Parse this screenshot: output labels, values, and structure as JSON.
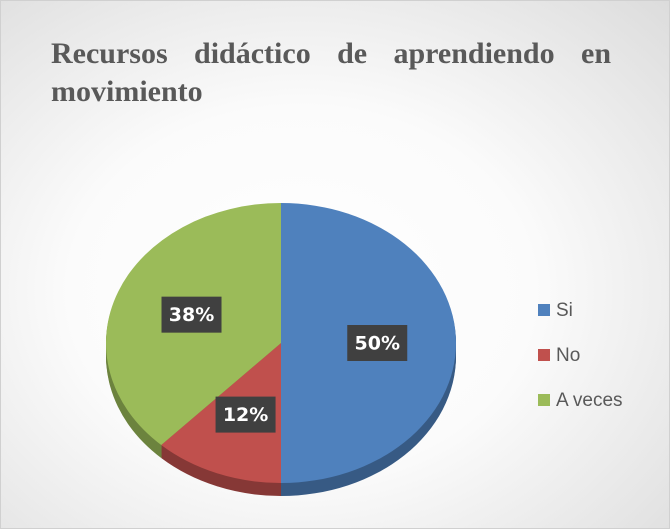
{
  "chart_data": {
    "type": "pie",
    "title": "Recursos didáctico de aprendiendo en movimiento",
    "categories": [
      "Si",
      "No",
      "A veces"
    ],
    "values": [
      50,
      12,
      38
    ],
    "value_labels": [
      "50%",
      "12%",
      "38%"
    ],
    "colors": [
      "#4f81bd",
      "#c0504d",
      "#9bbb59"
    ],
    "legend": "right"
  }
}
